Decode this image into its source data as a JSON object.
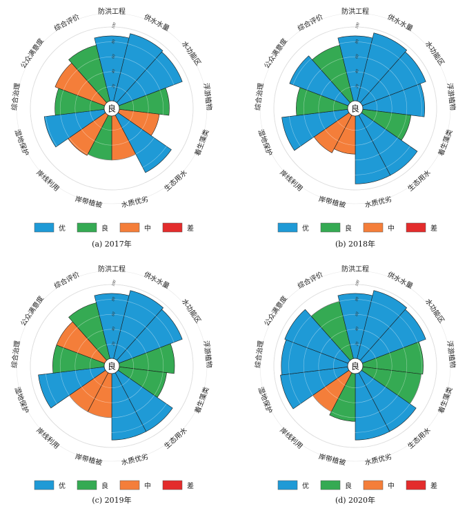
{
  "colors": {
    "优": "#1f9ad6",
    "良": "#35aa53",
    "中": "#f47e3a",
    "差": "#e32c2c",
    "ring": "#c8c8c8",
    "spoke": "#333333"
  },
  "chart_data": [
    {
      "type": "polar-bar",
      "caption": "(a) 2017年",
      "center_text": "良",
      "radial_ticks": [
        20,
        40,
        60,
        80,
        100
      ],
      "rlim": [
        0,
        100
      ],
      "categories": [
        "防洪工程",
        "供水水量",
        "水功能区",
        "浮游植物",
        "着生藻类",
        "生态用水",
        "水质优劣",
        "岸带植被",
        "岸线利用",
        "湿地保护",
        "综合治理",
        "公众满意度",
        "综合评价"
      ],
      "values": [
        88,
        94,
        92,
        68,
        55,
        88,
        60,
        60,
        62,
        82,
        67,
        72,
        78
      ],
      "grades": [
        "优",
        "优",
        "优",
        "良",
        "中",
        "优",
        "中",
        "良",
        "中",
        "优",
        "良",
        "中",
        "良"
      ]
    },
    {
      "type": "polar-bar",
      "caption": "(b) 2018年",
      "center_text": "良",
      "radial_ticks": [
        20,
        40,
        60,
        80,
        100
      ],
      "rlim": [
        0,
        100
      ],
      "categories": [
        "防洪工程",
        "供水水量",
        "水功能区",
        "浮游植物",
        "着生藻类",
        "生态用水",
        "水质优劣",
        "岸带植被",
        "岸线利用",
        "湿地保护",
        "综合治理",
        "公众满意度",
        "综合评价"
      ],
      "values": [
        88,
        95,
        92,
        84,
        66,
        92,
        92,
        52,
        58,
        90,
        70,
        85,
        78
      ],
      "grades": [
        "优",
        "优",
        "优",
        "优",
        "良",
        "优",
        "优",
        "中",
        "中",
        "优",
        "良",
        "优",
        "良"
      ]
    },
    {
      "type": "polar-bar",
      "caption": "(c) 2019年",
      "center_text": "良",
      "radial_ticks": [
        20,
        40,
        60,
        80,
        100
      ],
      "rlim": [
        0,
        100
      ],
      "categories": [
        "防洪工程",
        "供水水量",
        "水功能区",
        "浮游植物",
        "着生藻类",
        "生态用水",
        "水质优劣",
        "岸带植被",
        "岸线利用",
        "湿地保护",
        "综合治理",
        "公众满意度",
        "综合评价"
      ],
      "values": [
        88,
        95,
        92,
        75,
        65,
        90,
        90,
        60,
        60,
        90,
        70,
        70,
        78
      ],
      "grades": [
        "优",
        "优",
        "优",
        "良",
        "良",
        "优",
        "优",
        "中",
        "中",
        "优",
        "良",
        "中",
        "良"
      ]
    },
    {
      "type": "polar-bar",
      "caption": "(d) 2020年",
      "center_text": "良",
      "radial_ticks": [
        20,
        40,
        60,
        80,
        100
      ],
      "rlim": [
        0,
        100
      ],
      "categories": [
        "防洪工程",
        "供水水量",
        "水功能区",
        "浮游植物",
        "着生藻类",
        "生态用水",
        "水质优劣",
        "岸带植被",
        "岸线利用",
        "湿地保护",
        "综合治理",
        "公众满意度",
        "综合评价"
      ],
      "values": [
        88,
        95,
        92,
        82,
        80,
        90,
        90,
        65,
        60,
        92,
        90,
        92,
        80
      ],
      "grades": [
        "优",
        "优",
        "优",
        "良",
        "良",
        "优",
        "优",
        "良",
        "中",
        "优",
        "优",
        "优",
        "良"
      ]
    }
  ],
  "legend": [
    "优",
    "良",
    "中",
    "差"
  ]
}
